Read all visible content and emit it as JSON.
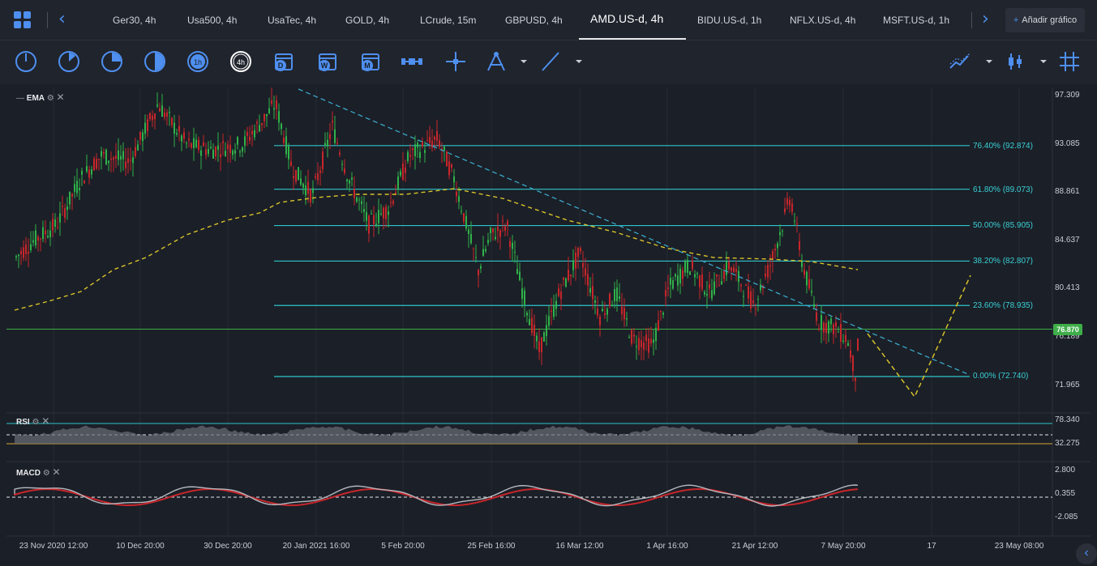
{
  "tabs": [
    {
      "label": "Ger30, 4h",
      "active": false
    },
    {
      "label": "Usa500, 4h",
      "active": false
    },
    {
      "label": "UsaTec, 4h",
      "active": false
    },
    {
      "label": "GOLD, 4h",
      "active": false
    },
    {
      "label": "LCrude, 15m",
      "active": false
    },
    {
      "label": "GBPUSD, 4h",
      "active": false
    },
    {
      "label": "AMD.US-d, 4h",
      "active": true
    },
    {
      "label": "BIDU.US-d, 1h",
      "active": false
    },
    {
      "label": "NFLX.US-d, 4h",
      "active": false
    },
    {
      "label": "MSFT.US-d, 1h",
      "active": false
    }
  ],
  "add_chart": {
    "plus": "+",
    "label": "Añadir gráfico"
  },
  "toolbar": {
    "timeframe_icons": [
      "m1-clock-icon",
      "m5-clock-icon",
      "m15-clock-icon",
      "m30-clock-icon",
      "h1-clock-icon",
      "h4-clock-icon"
    ],
    "h1_label": "1h",
    "h4_label": "4h",
    "d_label": "D",
    "w_label": "W",
    "m_label": "M",
    "accent": "#4e8ff0"
  },
  "main_chart": {
    "indicator": "EMA",
    "price_axis": [
      "97.309",
      "93.085",
      "88.861",
      "84.637",
      "80.413",
      "76.189",
      "71.965"
    ],
    "current_price": "76.870",
    "fib_levels": [
      {
        "label": "76.40% (92.874)",
        "value": 92.874
      },
      {
        "label": "61.80% (89.073)",
        "value": 89.073
      },
      {
        "label": "50.00% (85.905)",
        "value": 85.905
      },
      {
        "label": "38.20% (82.807)",
        "value": 82.807
      },
      {
        "label": "23.60% (78.935)",
        "value": 78.935
      },
      {
        "label": "0.00% (72.740)",
        "value": 72.74
      }
    ],
    "colors": {
      "bull": "#2fb24a",
      "bear": "#c8262b",
      "ema": "#d6c22a",
      "fib": "#2ec5cc",
      "trend": "#3aa7c8",
      "price_line": "#3fae4a"
    }
  },
  "rsi": {
    "title": "RSI",
    "levels": [
      "78.340",
      "32.275"
    ]
  },
  "macd": {
    "title": "MACD",
    "levels": [
      "2.800",
      "0.355",
      "-2.085"
    ]
  },
  "date_axis": [
    "23 Nov 2020 12:00",
    "10 Dec 20:00",
    "30 Dec 20:00",
    "20 Jan 2021 16:00",
    "5 Feb 20:00",
    "25 Feb 16:00",
    "16 Mar 12:00",
    "1 Apr 16:00",
    "21 Apr 12:00",
    "7 May 20:00",
    "17",
    "23 May 08:00"
  ]
}
